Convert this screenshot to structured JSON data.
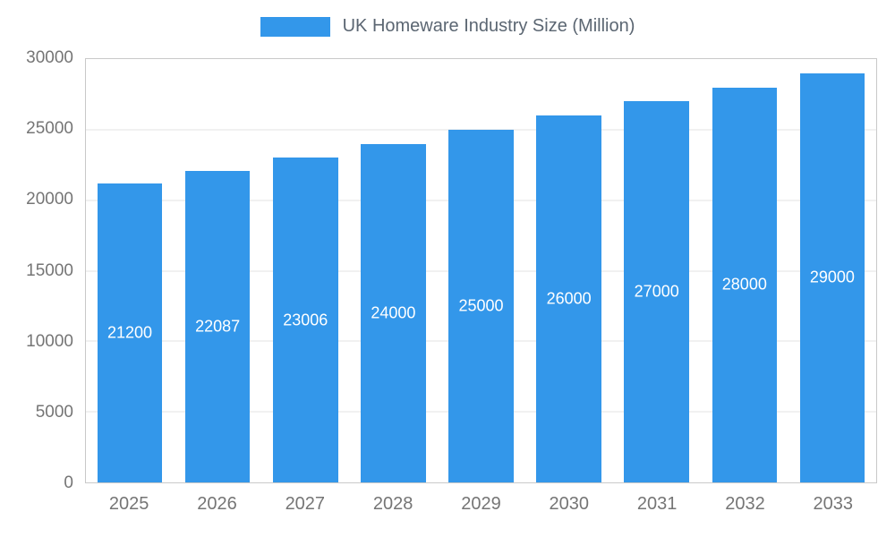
{
  "chart_data": {
    "type": "bar",
    "title": "UK Homeware Industry Size (Million)",
    "categories": [
      "2025",
      "2026",
      "2027",
      "2028",
      "2029",
      "2030",
      "2031",
      "2032",
      "2033"
    ],
    "values": [
      21200,
      22087,
      23006,
      24000,
      25000,
      26000,
      27000,
      28000,
      29000
    ],
    "xlabel": "",
    "ylabel": "",
    "ylim": [
      0,
      30000
    ],
    "ytick_step": 5000,
    "grid": true,
    "legend_position": "top",
    "colors": {
      "bar": "#3397EA",
      "bar_label": "#ffffff",
      "axis_text": "#757575",
      "title_text": "#5b6672",
      "gridline": "#e3e3e3",
      "plot_border": "#c9c9c9",
      "background": "#ffffff"
    }
  }
}
